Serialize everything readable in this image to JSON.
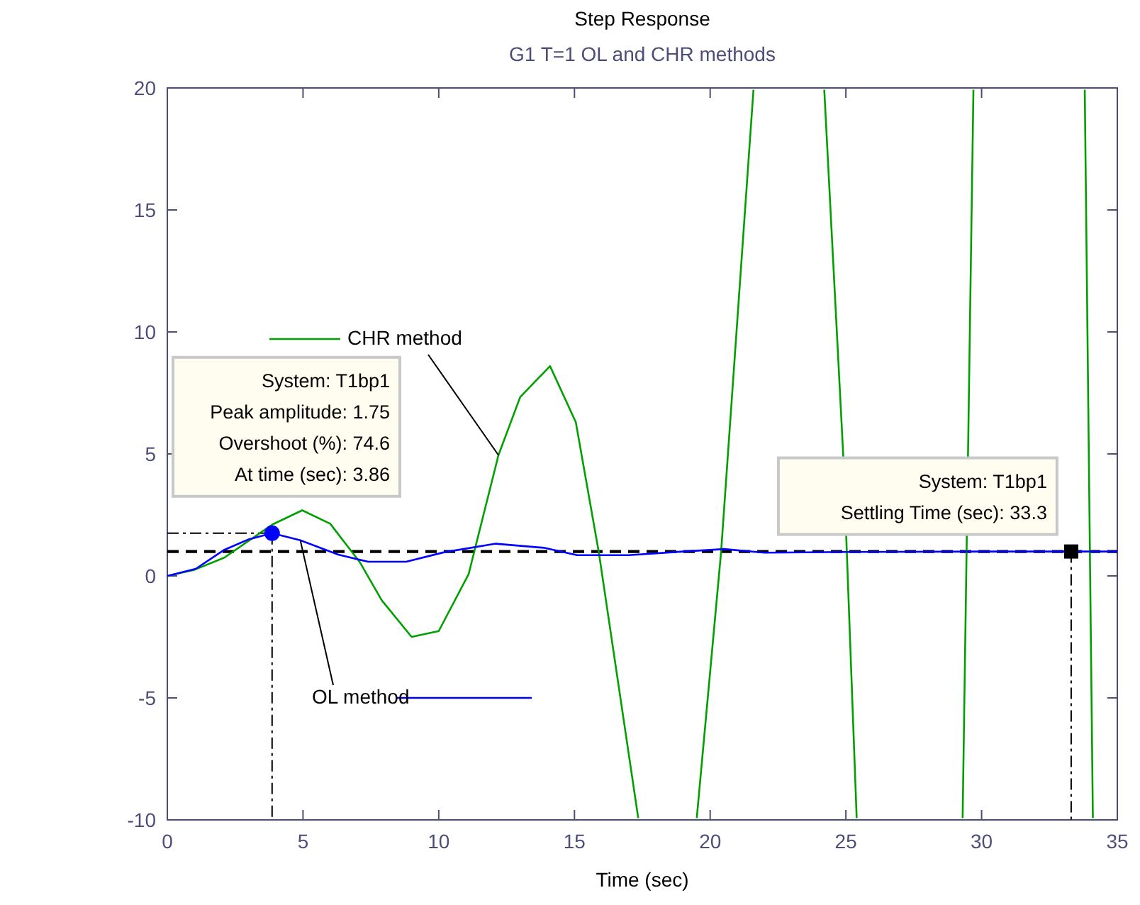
{
  "chart_data": {
    "type": "line",
    "title": "Step Response",
    "subtitle": "G1 T=1 OL and CHR methods",
    "xlabel": "Time (sec)",
    "xlim": [
      0,
      35
    ],
    "xticks": [
      0,
      5,
      10,
      15,
      20,
      25,
      30,
      35
    ],
    "ylim": [
      -10,
      20
    ],
    "yticks": [
      -10,
      -5,
      0,
      5,
      10,
      15,
      20
    ],
    "grid": false,
    "line_style": "solid",
    "series": [
      {
        "name": "CHR method",
        "color": "#00a000",
        "x": [
          0,
          1,
          2.1,
          3.86,
          4.97,
          6.0,
          7.1,
          7.9,
          9.0,
          10.0,
          11.1,
          12.2,
          13.0,
          14.1,
          15.05,
          15.9,
          17.36,
          19.5,
          20.4,
          21.6,
          24.2,
          24.9,
          25.4,
          29.3,
          29.7,
          33.8,
          34.1
        ],
        "values": [
          0,
          0.25,
          0.75,
          2.1,
          2.69,
          2.14,
          0.55,
          -1.0,
          -2.5,
          -2.26,
          0.07,
          4.95,
          7.33,
          8.6,
          6.3,
          0.95,
          -10,
          -10,
          0.95,
          20,
          20,
          5,
          -10,
          -10,
          20,
          20,
          -10
        ]
      },
      {
        "name": "OL method",
        "color": "#0000ff",
        "x": [
          0,
          1.05,
          2.1,
          3.0,
          3.86,
          4.9,
          6.3,
          7.4,
          8.8,
          10.2,
          12.1,
          13.9,
          15.1,
          17,
          19,
          20.5,
          22,
          25,
          30,
          35
        ],
        "values": [
          0,
          0.29,
          1.07,
          1.5,
          1.75,
          1.46,
          0.87,
          0.58,
          0.58,
          0.97,
          1.32,
          1.15,
          0.85,
          0.85,
          1.0,
          1.1,
          0.95,
          0.98,
          1.0,
          1.0
        ]
      },
      {
        "color": "#0000ff",
        "type": "scatter",
        "marker": "circle",
        "x": [
          3.86
        ],
        "values": [
          1.75
        ]
      },
      {
        "color": "#000000",
        "type": "scatter",
        "marker": "square",
        "x": [
          33.3
        ],
        "values": [
          1.0
        ]
      }
    ],
    "ref_lines": [
      {
        "axis": "y",
        "value": 1,
        "color": "#000000",
        "line_style": "dashed"
      }
    ],
    "annotations": [
      {
        "text": "System: T1bp1\nPeak amplitude: 1.75\nOvershoot (%): 74.6\nAt time (sec): 3.86",
        "x": 3.86,
        "y": 1.75
      },
      {
        "text": "System: T1bp1\nSettling Time (sec): 33.3",
        "x": 33.3,
        "y": 1.0
      }
    ]
  }
}
